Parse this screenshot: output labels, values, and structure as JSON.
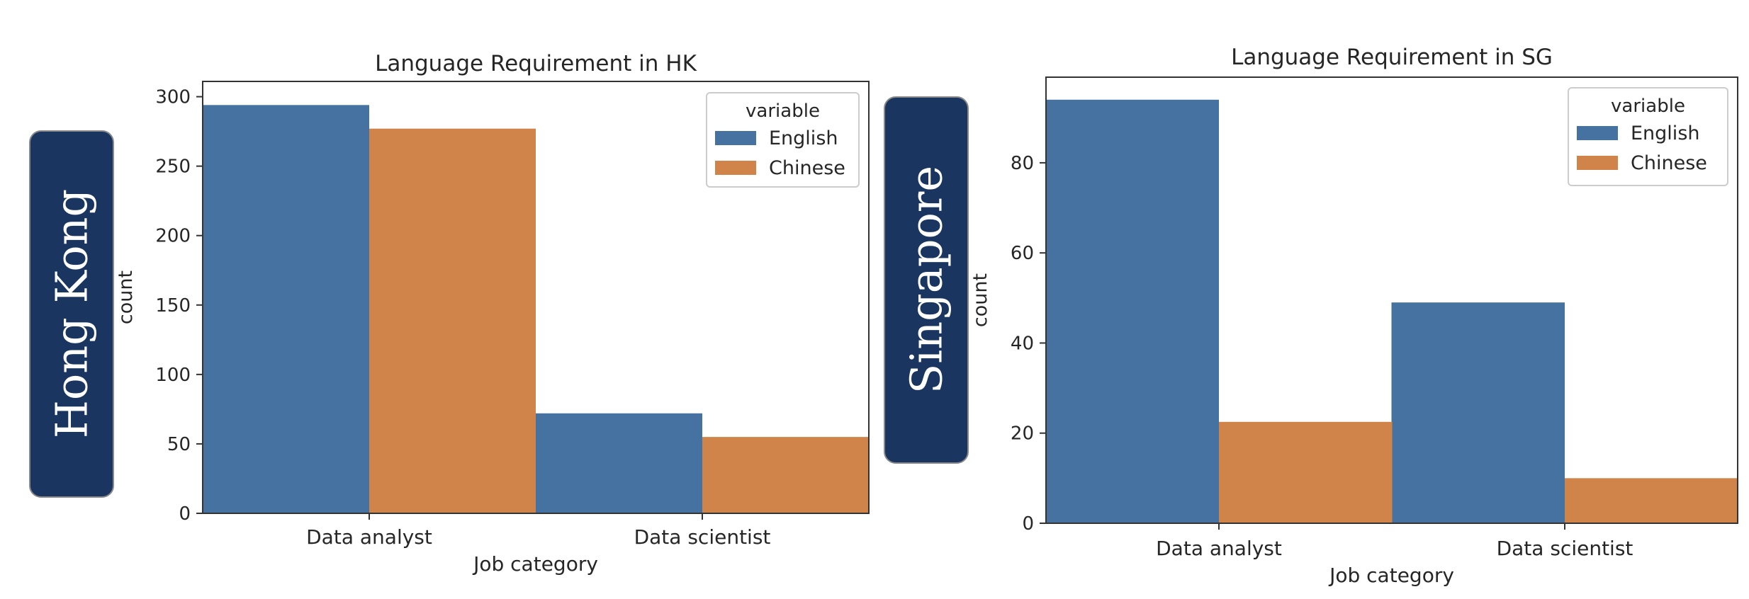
{
  "regions": {
    "left": "Hong Kong",
    "right": "Singapore"
  },
  "chart_data": [
    {
      "type": "bar",
      "title": "Language Requirement in HK",
      "xlabel": "Job category",
      "ylabel": "count",
      "categories": [
        "Data analyst",
        "Data scientist"
      ],
      "series": [
        {
          "name": "English",
          "values": [
            294,
            72
          ],
          "color": "#4572a0"
        },
        {
          "name": "Chinese",
          "values": [
            277,
            55
          ],
          "color": "#d0844a"
        }
      ],
      "ylim": [
        0,
        311
      ],
      "yticks": [
        0,
        50,
        100,
        150,
        200,
        250,
        300
      ],
      "legend_title": "variable",
      "legend_position": "top-right",
      "grid": false
    },
    {
      "type": "bar",
      "title": "Language Requirement in SG",
      "xlabel": "Job category",
      "ylabel": "count",
      "categories": [
        "Data analyst",
        "Data scientist"
      ],
      "series": [
        {
          "name": "English",
          "values": [
            94,
            49
          ],
          "color": "#4572a0"
        },
        {
          "name": "Chinese",
          "values": [
            22.5,
            10
          ],
          "color": "#d0844a"
        }
      ],
      "ylim": [
        0,
        99
      ],
      "yticks": [
        0,
        20,
        40,
        60,
        80
      ],
      "legend_title": "variable",
      "legend_position": "top-right",
      "grid": false
    }
  ]
}
